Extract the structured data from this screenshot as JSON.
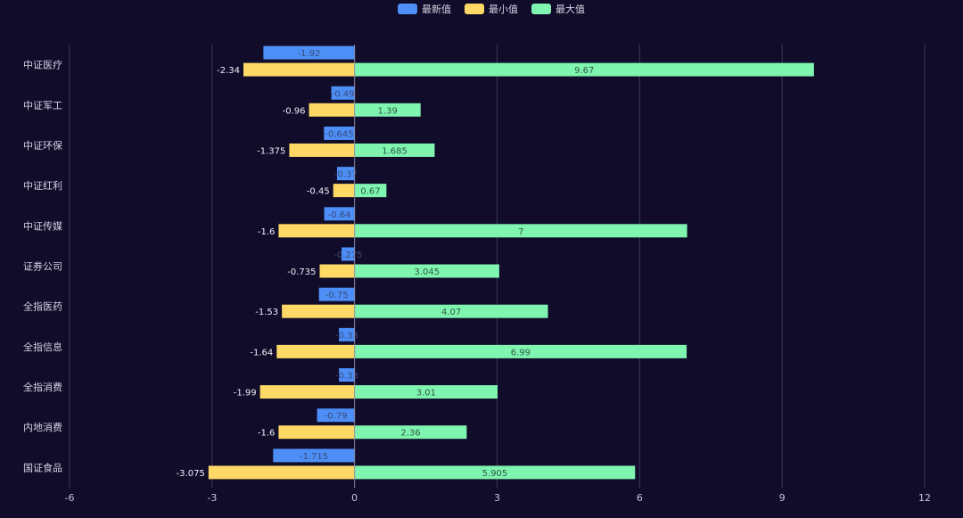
{
  "chart_data": {
    "type": "bar",
    "orientation": "horizontal",
    "title": "",
    "xlabel": "",
    "ylabel": "",
    "xlim": [
      -6,
      12
    ],
    "xticks": [
      -6,
      -3,
      0,
      3,
      6,
      9,
      12
    ],
    "grid": true,
    "legend_position": "top-center",
    "categories": [
      "中证医疗",
      "中证军工",
      "中证环保",
      "中证红利",
      "中证传媒",
      "证券公司",
      "全指医药",
      "全指信息",
      "全指消费",
      "内地消费",
      "国证食品"
    ],
    "series": [
      {
        "name": "最新值",
        "color": "#4d8ff7",
        "values": [
          -1.92,
          -0.49,
          -0.645,
          -0.37,
          -0.64,
          -0.275,
          -0.75,
          -0.33,
          -0.33,
          -0.79,
          -1.715
        ],
        "labels": [
          "-1.92",
          "-0.49",
          "-0.645",
          "-0.37",
          "-0.64",
          "-0.275",
          "-0.75",
          "-0.33",
          "-0.33",
          "-0.79",
          "-1.715"
        ]
      },
      {
        "name": "最小值",
        "color": "#ffd966",
        "values": [
          -2.34,
          -0.96,
          -1.375,
          -0.45,
          -1.6,
          -0.735,
          -1.53,
          -1.64,
          -1.99,
          -1.6,
          -3.075
        ],
        "labels": [
          "-2.34",
          "-0.96",
          "-1.375",
          "-0.45",
          "-1.6",
          "-0.735",
          "-1.53",
          "-1.64",
          "-1.99",
          "-1.6",
          "-3.075"
        ]
      },
      {
        "name": "最大值",
        "color": "#7ff5b0",
        "values": [
          9.67,
          1.39,
          1.685,
          0.67,
          7,
          3.045,
          4.07,
          6.99,
          3.01,
          2.36,
          5.905
        ],
        "labels": [
          "9.67",
          "1.39",
          "1.685",
          "0.67",
          "7",
          "3.045",
          "4.07",
          "6.99",
          "3.01",
          "2.36",
          "5.905"
        ]
      }
    ]
  }
}
